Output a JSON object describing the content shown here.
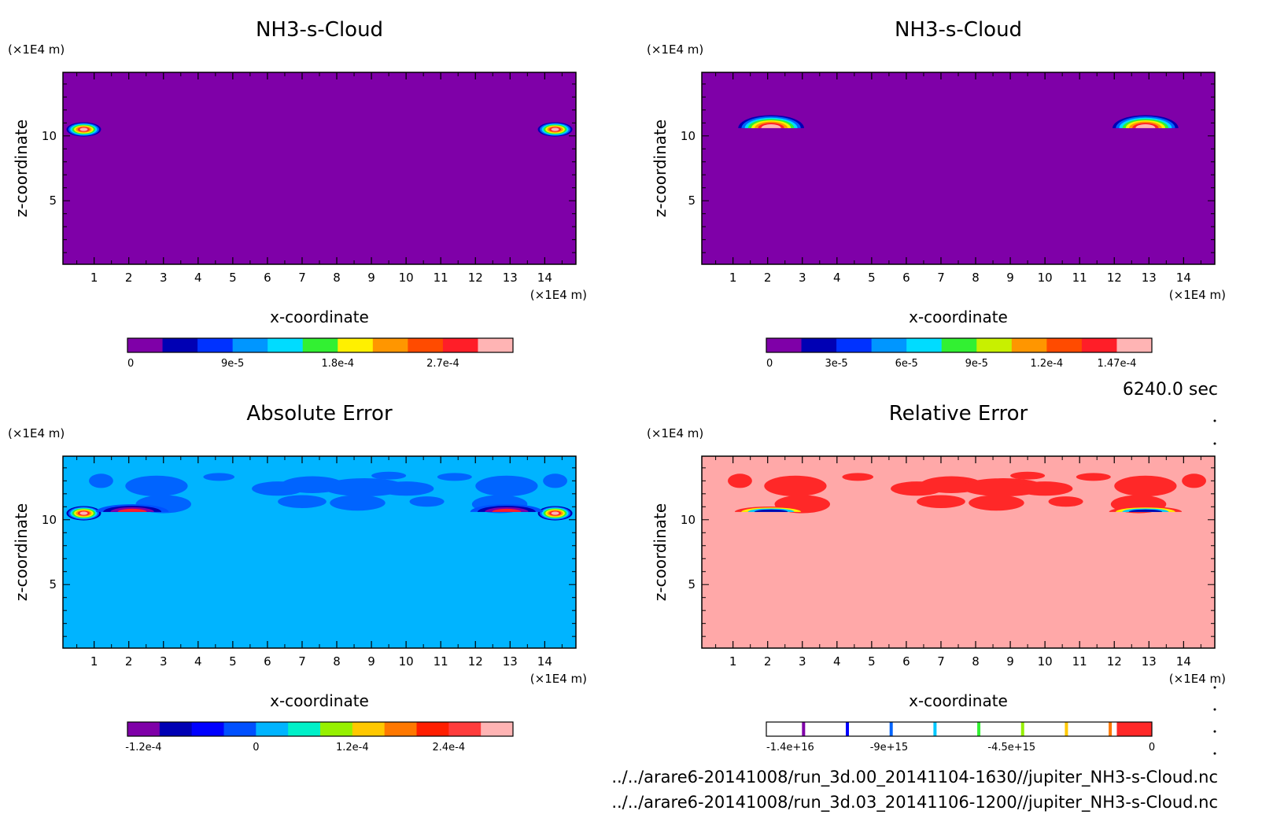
{
  "figure": {
    "time_label": "6240.0 sec",
    "file_paths": [
      "../../arare6-20141008/run_3d.00_20141104-1630//jupiter_NH3-s-Cloud.nc",
      "../../arare6-20141008/run_3d.03_20141106-1200//jupiter_NH3-s-Cloud.nc"
    ]
  },
  "chart_data": [
    {
      "type": "heatmap",
      "title": "NH3-s-Cloud",
      "xlabel": "x-coordinate",
      "ylabel": "z-coordinate",
      "x_unit": "(×1E4 m)",
      "y_unit": "(×1E4 m)",
      "xlim": [
        0.1,
        14.9
      ],
      "ylim": [
        0.1,
        14.9
      ],
      "x_ticks": [
        1,
        2,
        3,
        4,
        5,
        6,
        7,
        8,
        9,
        10,
        11,
        12,
        13,
        14
      ],
      "y_ticks": [
        5,
        10
      ],
      "background": "#7f00a8",
      "colorbar": {
        "colors": [
          "#7f00a8",
          "#0000b4",
          "#0032ff",
          "#0096ff",
          "#00dcff",
          "#32f032",
          "#fff000",
          "#ff9600",
          "#ff4b00",
          "#ff1e28",
          "#ffb4b4"
        ],
        "tick_values": [
          "0",
          "9e-5",
          "1.8e-4",
          "2.7e-4"
        ],
        "tick_positions": [
          0,
          3,
          6,
          9
        ]
      },
      "features": [
        {
          "x": 0.7,
          "z": 10.5,
          "rx": 0.5,
          "rz": 0.55,
          "shape": "blob"
        },
        {
          "x": 14.3,
          "z": 10.5,
          "rx": 0.5,
          "rz": 0.55,
          "shape": "blob"
        }
      ]
    },
    {
      "type": "heatmap",
      "title": "NH3-s-Cloud",
      "xlabel": "x-coordinate",
      "ylabel": "z-coordinate",
      "x_unit": "(×1E4 m)",
      "y_unit": "(×1E4 m)",
      "xlim": [
        0.1,
        14.9
      ],
      "ylim": [
        0.1,
        14.9
      ],
      "x_ticks": [
        1,
        2,
        3,
        4,
        5,
        6,
        7,
        8,
        9,
        10,
        11,
        12,
        13,
        14
      ],
      "y_ticks": [
        5,
        10
      ],
      "background": "#7f00a8",
      "colorbar": {
        "colors": [
          "#7f00a8",
          "#0000b4",
          "#0032ff",
          "#0096ff",
          "#00dcff",
          "#32f032",
          "#c8f000",
          "#ff9600",
          "#ff4b00",
          "#ff1e28",
          "#ffb4b4"
        ],
        "tick_values": [
          "0",
          "3e-5",
          "6e-5",
          "9e-5",
          "1.2e-4",
          "1.47e-4"
        ],
        "tick_positions": [
          0,
          2,
          4,
          6,
          8,
          10
        ]
      },
      "features": [
        {
          "x": 2.1,
          "z": 10.6,
          "rx": 0.95,
          "rz": 1.0,
          "shape": "dome"
        },
        {
          "x": 12.9,
          "z": 10.6,
          "rx": 0.95,
          "rz": 1.0,
          "shape": "dome"
        }
      ]
    },
    {
      "type": "heatmap",
      "title": "Absolute Error",
      "xlabel": "x-coordinate",
      "ylabel": "z-coordinate",
      "x_unit": "(×1E4 m)",
      "y_unit": "(×1E4 m)",
      "xlim": [
        0.1,
        14.9
      ],
      "ylim": [
        0.1,
        14.9
      ],
      "x_ticks": [
        1,
        2,
        3,
        4,
        5,
        6,
        7,
        8,
        9,
        10,
        11,
        12,
        13,
        14
      ],
      "y_ticks": [
        5,
        10
      ],
      "background": "#00b4ff",
      "patch_color": "#0064ff",
      "colorbar": {
        "colors": [
          "#7f00a8",
          "#0000b4",
          "#0000ff",
          "#0050ff",
          "#00b4ff",
          "#00f0c8",
          "#96f000",
          "#ffc800",
          "#ff7800",
          "#ff1e00",
          "#ff3c3c",
          "#ffb4b4"
        ],
        "tick_values": [
          "-1.2e-4",
          "0",
          "1.2e-4",
          "2.4e-4"
        ],
        "tick_positions": [
          0.5,
          4,
          7,
          10
        ]
      },
      "features": [
        {
          "x": 0.7,
          "z": 10.5,
          "rx": 0.5,
          "rz": 0.55,
          "shape": "blob"
        },
        {
          "x": 14.3,
          "z": 10.5,
          "rx": 0.5,
          "rz": 0.55,
          "shape": "blob"
        },
        {
          "x": 2.1,
          "z": 10.6,
          "rx": 1.05,
          "rz": 0.6,
          "shape": "dark-dome"
        },
        {
          "x": 12.9,
          "z": 10.6,
          "rx": 1.05,
          "rz": 0.6,
          "shape": "dark-dome"
        }
      ]
    },
    {
      "type": "heatmap",
      "title": "Relative Error",
      "xlabel": "x-coordinate",
      "ylabel": "z-coordinate",
      "x_unit": "(×1E4 m)",
      "y_unit": "(×1E4 m)",
      "xlim": [
        0.1,
        14.9
      ],
      "ylim": [
        0.1,
        14.9
      ],
      "x_ticks": [
        1,
        2,
        3,
        4,
        5,
        6,
        7,
        8,
        9,
        10,
        11,
        12,
        13,
        14
      ],
      "y_ticks": [
        5,
        10
      ],
      "background": "#ffa8a8",
      "patch_color": "#ff2828",
      "colorbar": {
        "colors": [
          "#ffffff",
          "#ffffff",
          "#ffffff",
          "#ffffff",
          "#ffffff",
          "#ffffff",
          "#ffffff",
          "#ffffff",
          "#ffffff",
          "#ffffff",
          "#ff2828"
        ],
        "line_colors": [
          "#7f00a8",
          "#0000ff",
          "#0064ff",
          "#00c8ff",
          "#32f032",
          "#96f000",
          "#ffc800",
          "#ff7800"
        ],
        "tick_values": [
          "-1.4e+16",
          "-9e+15",
          "-4.5e+15",
          "0"
        ],
        "tick_positions": [
          0,
          3.5,
          7,
          11
        ]
      },
      "features": [
        {
          "x": 2.1,
          "z": 10.6,
          "rx": 1.05,
          "rz": 0.6,
          "shape": "rel-dome"
        },
        {
          "x": 12.9,
          "z": 10.6,
          "rx": 1.05,
          "rz": 0.6,
          "shape": "rel-dome"
        }
      ]
    }
  ]
}
